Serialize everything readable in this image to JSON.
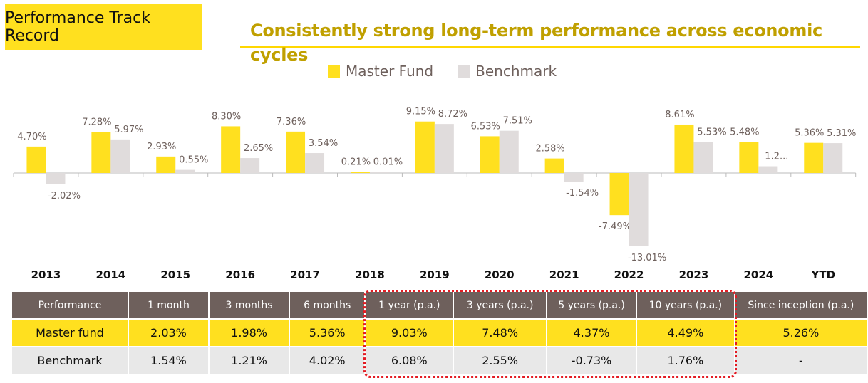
{
  "header": {
    "title": "Performance Track Record",
    "subtitle": "Consistently strong long-term performance across economic cycles"
  },
  "colors": {
    "master": "#FFE01F",
    "benchmark": "#E0DCDC",
    "header_bg": "#6E605C",
    "highlight": "#E31B23"
  },
  "chart_data": {
    "type": "bar",
    "categories": [
      "2013",
      "2014",
      "2015",
      "2016",
      "2017",
      "2018",
      "2019",
      "2020",
      "2021",
      "2022",
      "2023",
      "2024",
      "YTD"
    ],
    "series": [
      {
        "name": "Master Fund",
        "values": [
          4.7,
          7.28,
          2.93,
          8.3,
          7.36,
          0.21,
          9.15,
          6.53,
          2.58,
          -7.49,
          8.61,
          5.48,
          5.36
        ],
        "labels": [
          "4.70%",
          "7.28%",
          "2.93%",
          "8.30%",
          "7.36%",
          "0.21%",
          "9.15%",
          "6.53%",
          "2.58%",
          "-7.49%",
          "8.61%",
          "5.48%",
          "5.36%"
        ]
      },
      {
        "name": "Benchmark",
        "values": [
          -2.02,
          5.97,
          0.55,
          2.65,
          3.54,
          0.01,
          8.72,
          7.51,
          -1.54,
          -13.01,
          5.53,
          1.2,
          5.31
        ],
        "labels": [
          "-2.02%",
          "5.97%",
          "0.55%",
          "2.65%",
          "3.54%",
          "0.01%",
          "8.72%",
          "7.51%",
          "-1.54%",
          "-13.01%",
          "5.53%",
          "1.2...",
          "5.31%"
        ]
      }
    ],
    "legend": "top-center",
    "grid": false
  },
  "table": {
    "headers": [
      "Performance",
      "1 month",
      "3 months",
      "6 months",
      "1 year (p.a.)",
      "3 years (p.a.)",
      "5 years (p.a.)",
      "10 years (p.a.)",
      "Since inception (p.a.)"
    ],
    "rows": [
      [
        "Master fund",
        "2.03%",
        "1.98%",
        "5.36%",
        "9.03%",
        "7.48%",
        "4.37%",
        "4.49%",
        "5.26%"
      ],
      [
        "Benchmark",
        "1.54%",
        "1.21%",
        "4.02%",
        "6.08%",
        "2.55%",
        "-0.73%",
        "1.76%",
        "-"
      ]
    ]
  }
}
